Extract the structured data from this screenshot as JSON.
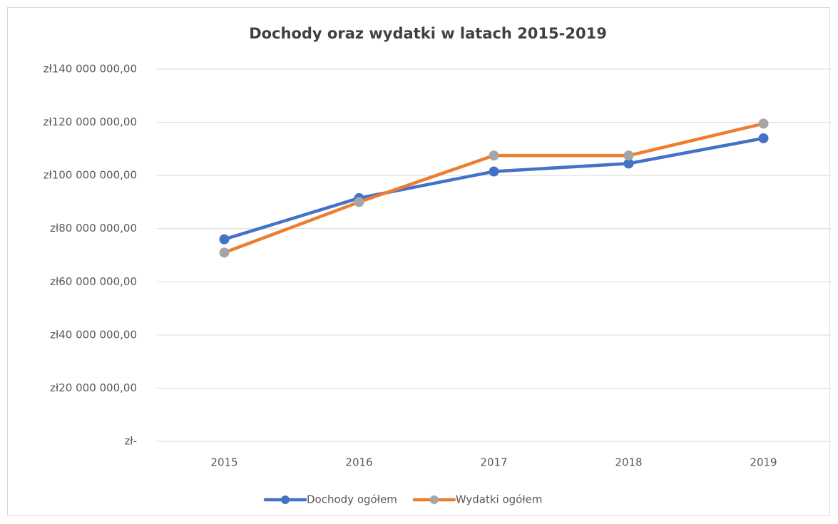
{
  "chart_data": {
    "type": "line",
    "title": "Dochody oraz wydatki w latach 2015-2019",
    "categories": [
      "2015",
      "2016",
      "2017",
      "2018",
      "2019"
    ],
    "series": [
      {
        "name": "Dochody ogółem",
        "color": "#4472c4",
        "marker_color": "#4472c4",
        "values": [
          76000000,
          91500000,
          101500000,
          104500000,
          114000000
        ]
      },
      {
        "name": "Wydatki ogółem",
        "color": "#ed7d31",
        "marker_color": "#a5a5a5",
        "values": [
          71000000,
          90000000,
          107500000,
          107500000,
          119500000
        ]
      }
    ],
    "ylim": [
      0,
      140000000
    ],
    "yticks": [
      {
        "value": 0,
        "label": "zł-"
      },
      {
        "value": 20000000,
        "label": "zł20 000 000,00"
      },
      {
        "value": 40000000,
        "label": "zł40 000 000,00"
      },
      {
        "value": 60000000,
        "label": "zł60 000 000,00"
      },
      {
        "value": 80000000,
        "label": "zł80 000 000,00"
      },
      {
        "value": 100000000,
        "label": "zł100 000 000,00"
      },
      {
        "value": 120000000,
        "label": "zł120 000 000,00"
      },
      {
        "value": 140000000,
        "label": "zł140 000 000,00"
      }
    ],
    "grid": true,
    "legend": "bottom"
  }
}
